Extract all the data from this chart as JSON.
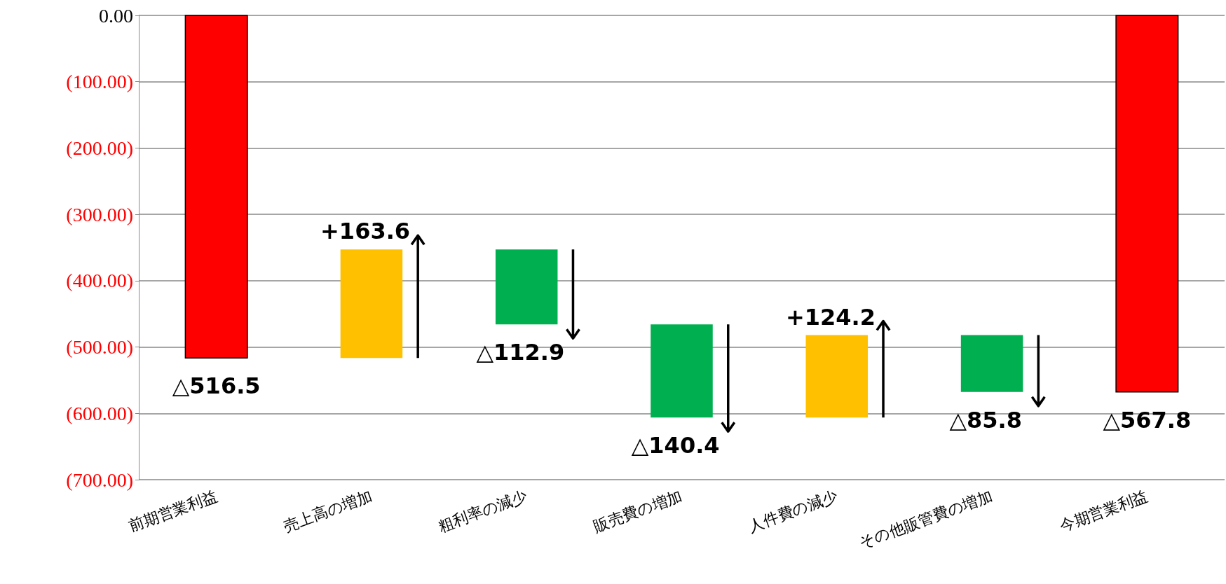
{
  "chart_data": {
    "type": "bar",
    "categories": [
      "前期営業利益",
      "売上高の増加",
      "粗利率の減少",
      "販売費の増加",
      "人件費の減少",
      "その他販管費の増加",
      "今期営業利益"
    ],
    "base": [
      0,
      -516.5,
      -352.9,
      -465.8,
      -606.2,
      -482.0,
      0
    ],
    "values": [
      -516.5,
      163.6,
      -112.9,
      -140.4,
      124.2,
      -85.8,
      -567.8
    ],
    "value_labels": [
      "△516.5",
      "+163.6",
      "△112.9",
      "△140.4",
      "+124.2",
      "△85.8",
      "△567.8"
    ],
    "colors": [
      "#ff0000",
      "#ffc000",
      "#00b050",
      "#00b050",
      "#ffc000",
      "#00b050",
      "#ff0000"
    ],
    "ylim": [
      -700,
      0
    ],
    "yticks": [
      {
        "value": 0,
        "label": "0.00"
      },
      {
        "value": -100,
        "label": "(100.00)"
      },
      {
        "value": -200,
        "label": "(200.00)"
      },
      {
        "value": -300,
        "label": "(300.00)"
      },
      {
        "value": -400,
        "label": "(400.00)"
      },
      {
        "value": -500,
        "label": "(500.00)"
      },
      {
        "value": -600,
        "label": "(600.00)"
      },
      {
        "value": -700,
        "label": "(700.00)"
      }
    ],
    "grid": "y"
  }
}
